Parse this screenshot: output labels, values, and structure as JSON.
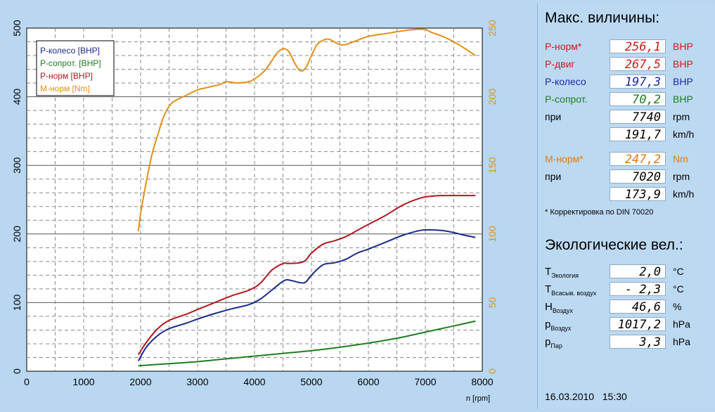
{
  "chart_data": {
    "type": "line",
    "xlabel": "n [rpm]",
    "x_ticks": [
      "0",
      "1000",
      "2000",
      "3000",
      "4000",
      "5000",
      "6000",
      "7000",
      "8000"
    ],
    "xlim": [
      0,
      8000
    ],
    "ylim_left": [
      0,
      500
    ],
    "ylim_right": [
      0,
      250
    ],
    "y_ticks_left": [
      "0",
      "100",
      "200",
      "300",
      "400",
      "500"
    ],
    "y_ticks_right": [
      "0",
      "50",
      "100",
      "150",
      "200",
      "250"
    ],
    "legend": [
      "P-колесо [BHP]",
      "P-сопрот. [BHP]",
      "P-норм [BHP]",
      "M-норм [Nm]"
    ],
    "series": [
      {
        "name": "P-колесо [BHP]",
        "axis": "left",
        "color": "#1a2a8a",
        "x": [
          1960,
          2100,
          2300,
          2500,
          2800,
          3000,
          3300,
          3600,
          3900,
          4100,
          4300,
          4500,
          4600,
          4800,
          4900,
          5000,
          5200,
          5400,
          5600,
          5800,
          6000,
          6300,
          6600,
          6900,
          7100,
          7300,
          7500,
          7700,
          7880
        ],
        "y": [
          15,
          35,
          52,
          62,
          70,
          76,
          84,
          91,
          97,
          105,
          118,
          131,
          133,
          129,
          130,
          140,
          155,
          158,
          163,
          172,
          178,
          188,
          198,
          205,
          206,
          205,
          202,
          198,
          195
        ]
      },
      {
        "name": "P-сопрот. [BHP]",
        "axis": "left",
        "color": "#1e7d20",
        "x": [
          1960,
          2500,
          3000,
          3500,
          4000,
          4500,
          5000,
          5500,
          6000,
          6500,
          7000,
          7500,
          7880
        ],
        "y": [
          8,
          11,
          14,
          18,
          22,
          26,
          30,
          35,
          41,
          48,
          57,
          66,
          73
        ]
      },
      {
        "name": "P-норм [BHP]",
        "axis": "left",
        "color": "#b01820",
        "x": [
          1960,
          2100,
          2300,
          2500,
          2800,
          3000,
          3300,
          3600,
          3900,
          4100,
          4300,
          4500,
          4600,
          4800,
          4900,
          5000,
          5200,
          5400,
          5600,
          5800,
          6000,
          6300,
          6600,
          6900,
          7100,
          7300,
          7500,
          7700,
          7880
        ],
        "y": [
          24,
          42,
          62,
          74,
          83,
          90,
          100,
          110,
          118,
          128,
          147,
          157,
          157,
          158,
          162,
          172,
          185,
          190,
          196,
          205,
          214,
          227,
          242,
          252,
          255,
          256,
          256,
          256,
          256
        ]
      },
      {
        "name": "M-норм [Nm]",
        "axis": "right",
        "color": "#e0901a",
        "x": [
          1960,
          2000,
          2100,
          2200,
          2300,
          2400,
          2500,
          2600,
          2800,
          3000,
          3200,
          3400,
          3500,
          3700,
          3900,
          4000,
          4100,
          4200,
          4300,
          4400,
          4500,
          4600,
          4700,
          4800,
          4900,
          5000,
          5100,
          5200,
          5300,
          5400,
          5500,
          5600,
          5800,
          6000,
          6300,
          6600,
          6800,
          7000,
          7100,
          7300,
          7500,
          7700,
          7880
        ],
        "y": [
          102,
          115,
          138,
          158,
          172,
          185,
          193,
          197,
          201,
          205,
          207,
          209,
          211,
          210,
          211,
          213,
          216,
          220,
          226,
          232,
          235,
          233,
          225,
          219,
          221,
          230,
          238,
          241,
          242,
          240,
          238,
          238,
          241,
          244,
          246,
          248,
          249,
          249,
          247,
          244,
          240,
          235,
          230
        ]
      }
    ]
  },
  "panel": {
    "title1": "Макс. виличины:",
    "rows": [
      {
        "label": "P-норм*",
        "value": "256,1",
        "unit": "BHP",
        "color": "#d01818"
      },
      {
        "label": "P-двиг",
        "value": "267,5",
        "unit": "BHP",
        "color": "#d01818"
      },
      {
        "label": "P-колесо",
        "value": "197,3",
        "unit": "BHP",
        "color": "#1a2aa0"
      },
      {
        "label": "P-сопрот.",
        "value": "70,2",
        "unit": "BHP",
        "color": "#1e7d20"
      },
      {
        "label": "при",
        "value": "7740",
        "unit": "rpm",
        "color": "#000000"
      },
      {
        "label": "",
        "value": "191,7",
        "unit": "km/h",
        "color": "#000000"
      },
      {
        "label": "M-норм*",
        "value": "247,2",
        "unit": "Nm",
        "color": "#e07a10"
      },
      {
        "label": "при",
        "value": "7020",
        "unit": "rpm",
        "color": "#000000"
      },
      {
        "label": "",
        "value": "173,9",
        "unit": "km/h",
        "color": "#000000"
      }
    ],
    "footnote": "* Корректировка по DIN 70020",
    "title2": "Экологические вел.:",
    "eco": [
      {
        "sym": "T",
        "sub": "Экология",
        "value": "2,0",
        "unit": "°C"
      },
      {
        "sym": "T",
        "sub": "Всасыв. воздух",
        "value": "-   2,3",
        "unit": "°C"
      },
      {
        "sym": "H",
        "sub": "Воздух",
        "value": "46,6",
        "unit": "%"
      },
      {
        "sym": "p",
        "sub": "Воздух",
        "value": "1017,2",
        "unit": "hPa"
      },
      {
        "sym": "p",
        "sub": "Пар",
        "value": "3,3",
        "unit": "hPa"
      }
    ],
    "date": "16.03.2010",
    "time": "15:30"
  }
}
